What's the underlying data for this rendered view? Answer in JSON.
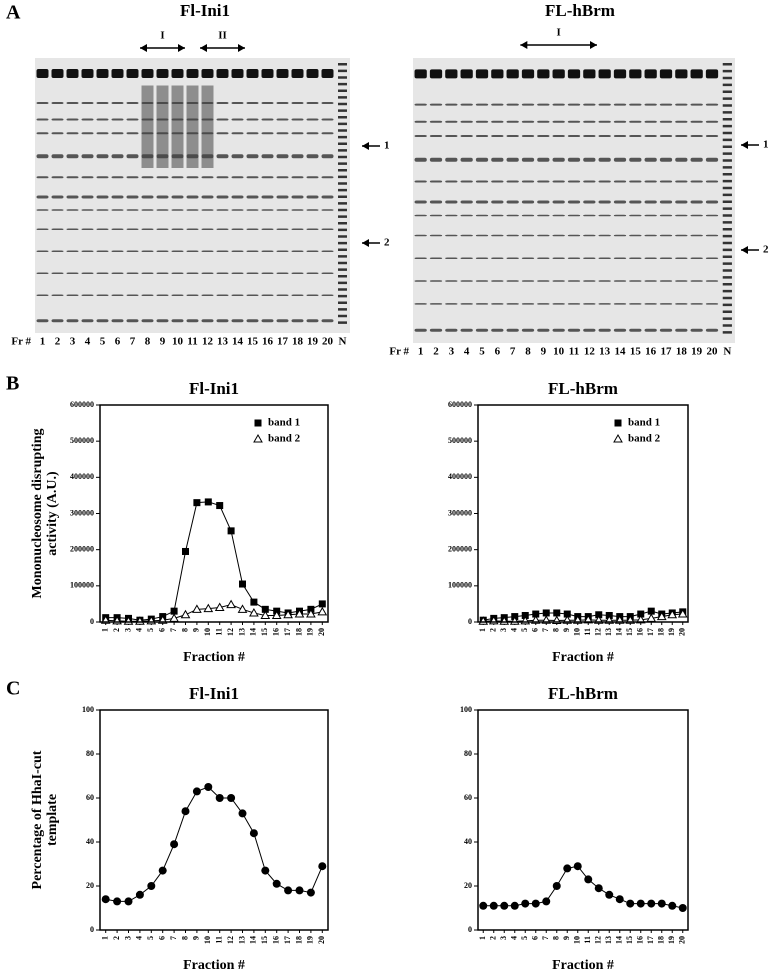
{
  "panel_labels": [
    "A",
    "B",
    "C"
  ],
  "gels": [
    {
      "title": "Fl-Ini1",
      "lane_label": "Fr #",
      "lanes": [
        "1",
        "2",
        "3",
        "4",
        "5",
        "6",
        "7",
        "8",
        "9",
        "10",
        "11",
        "12",
        "13",
        "14",
        "15",
        "16",
        "17",
        "18",
        "19",
        "20",
        "N"
      ],
      "regions": [
        {
          "label": "I"
        },
        {
          "label": "II"
        }
      ],
      "arrows": [
        "1",
        "2"
      ]
    },
    {
      "title": "FL-hBrm",
      "lane_label": "Fr #",
      "lanes": [
        "1",
        "2",
        "3",
        "4",
        "5",
        "6",
        "7",
        "8",
        "9",
        "10",
        "11",
        "12",
        "13",
        "14",
        "15",
        "16",
        "17",
        "18",
        "19",
        "20",
        "N"
      ],
      "regions": [
        {
          "label": "I"
        }
      ],
      "arrows": [
        "1",
        "2"
      ]
    }
  ],
  "chart_data": [
    {
      "type": "line",
      "title": "Fl-Ini1",
      "x_label": "Fraction #",
      "y_label": [
        "Mononucleosome disrupting",
        "activity (A.U.)"
      ],
      "categories": [
        "1",
        "2",
        "3",
        "4",
        "5",
        "6",
        "7",
        "8",
        "9",
        "10",
        "11",
        "12",
        "13",
        "14",
        "15",
        "16",
        "17",
        "18",
        "19",
        "20"
      ],
      "ylim": [
        0,
        600000
      ],
      "yticks": [
        0,
        100000,
        200000,
        300000,
        400000,
        500000,
        600000
      ],
      "legend": "upper-right",
      "series": [
        {
          "name": "band 1",
          "color": "#000000",
          "marker": "square-filled",
          "values": [
            12000,
            12000,
            10000,
            5000,
            8000,
            15000,
            30000,
            195000,
            330000,
            332000,
            322000,
            252000,
            105000,
            55000,
            35000,
            30000,
            25000,
            30000,
            35000,
            50000
          ]
        },
        {
          "name": "band 2",
          "color": "#000000",
          "marker": "triangle-open",
          "values": [
            5000,
            3000,
            2000,
            2000,
            3000,
            5000,
            10000,
            20000,
            35000,
            37000,
            40000,
            48000,
            35000,
            25000,
            18000,
            18000,
            20000,
            22000,
            22000,
            28000
          ]
        }
      ]
    },
    {
      "type": "line",
      "title": "FL-hBrm",
      "x_label": "Fraction #",
      "categories": [
        "1",
        "2",
        "3",
        "4",
        "5",
        "6",
        "7",
        "8",
        "9",
        "10",
        "11",
        "12",
        "13",
        "14",
        "15",
        "16",
        "17",
        "18",
        "19",
        "20"
      ],
      "ylim": [
        0,
        600000
      ],
      "yticks": [
        0,
        100000,
        200000,
        300000,
        400000,
        500000,
        600000
      ],
      "legend": "upper-right",
      "series": [
        {
          "name": "band 1",
          "color": "#000000",
          "marker": "square-filled",
          "values": [
            5000,
            10000,
            12000,
            15000,
            18000,
            22000,
            25000,
            25000,
            22000,
            15000,
            15000,
            20000,
            18000,
            15000,
            15000,
            22000,
            30000,
            22000,
            25000,
            28000
          ]
        },
        {
          "name": "band 2",
          "color": "#000000",
          "marker": "triangle-open",
          "values": [
            2000,
            3000,
            2000,
            2000,
            3000,
            5000,
            5000,
            4000,
            5000,
            5000,
            6000,
            5000,
            5000,
            5000,
            5000,
            6000,
            10000,
            15000,
            20000,
            22000
          ]
        }
      ]
    },
    {
      "type": "line",
      "title": "Fl-Ini1",
      "x_label": "Fraction #",
      "y_label": [
        "Percentage of HhaI-cut",
        "template"
      ],
      "categories": [
        "1",
        "2",
        "3",
        "4",
        "5",
        "6",
        "7",
        "8",
        "9",
        "10",
        "11",
        "12",
        "13",
        "14",
        "15",
        "16",
        "17",
        "18",
        "19",
        "20"
      ],
      "ylim": [
        0,
        100
      ],
      "yticks": [
        0,
        20,
        40,
        60,
        80,
        100
      ],
      "series": [
        {
          "color": "#000000",
          "marker": "circle-filled",
          "values": [
            14,
            13,
            13,
            16,
            20,
            27,
            39,
            54,
            63,
            65,
            60,
            60,
            53,
            44,
            27,
            21,
            18,
            18,
            17,
            29
          ]
        }
      ]
    },
    {
      "type": "line",
      "title": "FL-hBrm",
      "x_label": "Fraction #",
      "categories": [
        "1",
        "2",
        "3",
        "4",
        "5",
        "6",
        "7",
        "8",
        "9",
        "10",
        "11",
        "12",
        "13",
        "14",
        "15",
        "16",
        "17",
        "18",
        "19",
        "20"
      ],
      "ylim": [
        0,
        100
      ],
      "yticks": [
        0,
        20,
        40,
        60,
        80,
        100
      ],
      "series": [
        {
          "color": "#000000",
          "marker": "circle-filled",
          "values": [
            11,
            11,
            11,
            11,
            12,
            12,
            13,
            20,
            28,
            29,
            23,
            19,
            16,
            14,
            12,
            12,
            12,
            12,
            11,
            10
          ]
        }
      ]
    }
  ]
}
